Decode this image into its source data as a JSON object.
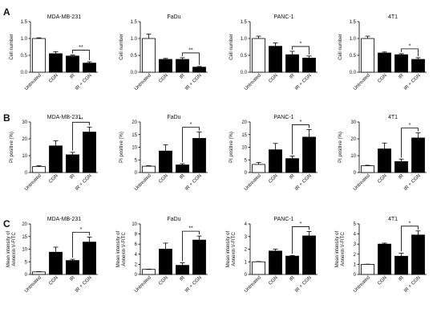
{
  "chart_data": [
    {
      "type": "bar",
      "panel": "A",
      "title": "MDA-MB-231",
      "xlabel": "",
      "ylabel": "Cell number",
      "categories": [
        "Untreated",
        "CGN",
        "IR",
        "IR + CGN"
      ],
      "values": [
        1.0,
        0.55,
        0.48,
        0.27
      ],
      "errors": [
        0.02,
        0.06,
        0.03,
        0.04
      ],
      "fills": [
        "#ffffff",
        "#000000",
        "#000000",
        "#000000"
      ],
      "ylim": [
        0,
        1.5
      ],
      "yticks": [
        "0.0",
        "0.5",
        "1.0",
        "1.5"
      ],
      "sig": {
        "from": 2,
        "to": 3,
        "label": "**"
      }
    },
    {
      "type": "bar",
      "panel": "A",
      "title": "FaDu",
      "xlabel": "",
      "ylabel": "Cell number",
      "categories": [
        "Untreated",
        "CGN",
        "IR",
        "IR + CGN"
      ],
      "values": [
        1.0,
        0.38,
        0.38,
        0.15
      ],
      "errors": [
        0.13,
        0.03,
        0.05,
        0.02
      ],
      "fills": [
        "#ffffff",
        "#000000",
        "#000000",
        "#000000"
      ],
      "ylim": [
        0,
        1.5
      ],
      "yticks": [
        "0.0",
        "0.5",
        "1.0",
        "1.5"
      ],
      "sig": {
        "from": 2,
        "to": 3,
        "label": "**"
      }
    },
    {
      "type": "bar",
      "panel": "A",
      "title": "PANC-1",
      "xlabel": "",
      "ylabel": "Cell number",
      "categories": [
        "Untreated",
        "CGN",
        "IR",
        "IR + CGN"
      ],
      "values": [
        1.0,
        0.77,
        0.52,
        0.42
      ],
      "errors": [
        0.07,
        0.1,
        0.1,
        0.06
      ],
      "fills": [
        "#ffffff",
        "#000000",
        "#000000",
        "#000000"
      ],
      "ylim": [
        0,
        1.5
      ],
      "yticks": [
        "0.0",
        "0.5",
        "1.0",
        "1.5"
      ],
      "sig": {
        "from": 2,
        "to": 3,
        "label": "*"
      }
    },
    {
      "type": "bar",
      "panel": "A",
      "title": "4T1",
      "xlabel": "",
      "ylabel": "Cell number",
      "categories": [
        "Untreated",
        "CGN",
        "IR",
        "IR + CGN"
      ],
      "values": [
        1.0,
        0.57,
        0.52,
        0.38
      ],
      "errors": [
        0.07,
        0.03,
        0.03,
        0.05
      ],
      "fills": [
        "#ffffff",
        "#000000",
        "#000000",
        "#000000"
      ],
      "ylim": [
        0,
        1.5
      ],
      "yticks": [
        "0.0",
        "0.5",
        "1.0",
        "1.5"
      ],
      "sig": {
        "from": 2,
        "to": 3,
        "label": "*"
      }
    },
    {
      "type": "bar",
      "panel": "B",
      "title": "MDA-MB-231",
      "xlabel": "",
      "ylabel": "PI positive (%)",
      "categories": [
        "Untreated",
        "CGN",
        "IR",
        "IR + CGN"
      ],
      "values": [
        3.5,
        15.8,
        10.5,
        24.0
      ],
      "errors": [
        0.5,
        3.0,
        1.5,
        3.0
      ],
      "fills": [
        "#ffffff",
        "#000000",
        "#000000",
        "#000000"
      ],
      "ylim": [
        0,
        30
      ],
      "yticks": [
        "0",
        "10",
        "20",
        "30"
      ],
      "sig": {
        "from": 2,
        "to": 3,
        "label": "**"
      }
    },
    {
      "type": "bar",
      "panel": "B",
      "title": "FaDu",
      "xlabel": "",
      "ylabel": "PI positive (%)",
      "categories": [
        "Untreated",
        "CGN",
        "IR",
        "IR + CGN"
      ],
      "values": [
        2.5,
        8.5,
        3.0,
        13.5
      ],
      "errors": [
        0.2,
        2.5,
        0.5,
        2.5
      ],
      "fills": [
        "#ffffff",
        "#000000",
        "#000000",
        "#000000"
      ],
      "ylim": [
        0,
        20
      ],
      "yticks": [
        "0",
        "5",
        "10",
        "15",
        "20"
      ],
      "sig": {
        "from": 2,
        "to": 3,
        "label": "*"
      }
    },
    {
      "type": "bar",
      "panel": "B",
      "title": "PANC-1",
      "xlabel": "",
      "ylabel": "PI positive (%)",
      "categories": [
        "Untreated",
        "CGN",
        "IR",
        "IR + CGN"
      ],
      "values": [
        3.2,
        9.0,
        5.5,
        14.0
      ],
      "errors": [
        0.8,
        2.5,
        1.0,
        3.0
      ],
      "fills": [
        "#ffffff",
        "#000000",
        "#000000",
        "#000000"
      ],
      "ylim": [
        0,
        20
      ],
      "yticks": [
        "0",
        "5",
        "10",
        "15",
        "20"
      ],
      "sig": {
        "from": 2,
        "to": 3,
        "label": "*"
      }
    },
    {
      "type": "bar",
      "panel": "B",
      "title": "4T1",
      "xlabel": "",
      "ylabel": "PI positive (%)",
      "categories": [
        "Untreated",
        "CGN",
        "IR",
        "IR + CGN"
      ],
      "values": [
        4.0,
        14.0,
        6.5,
        20.5
      ],
      "errors": [
        0.3,
        3.5,
        1.5,
        3.0
      ],
      "fills": [
        "#ffffff",
        "#000000",
        "#000000",
        "#000000"
      ],
      "ylim": [
        0,
        30
      ],
      "yticks": [
        "0",
        "10",
        "20",
        "30"
      ],
      "sig": {
        "from": 2,
        "to": 3,
        "label": "*"
      }
    },
    {
      "type": "bar",
      "panel": "C",
      "title": "MDA-MB-231",
      "xlabel": "",
      "ylabel": "Mean intensity of Annexin V-FITC",
      "categories": [
        "Untreated",
        "CGN",
        "IR",
        "IR + CGN"
      ],
      "values": [
        1.0,
        8.8,
        5.5,
        12.8
      ],
      "errors": [
        0.1,
        2.0,
        0.5,
        2.0
      ],
      "fills": [
        "#ffffff",
        "#000000",
        "#000000",
        "#000000"
      ],
      "ylim": [
        0,
        20
      ],
      "yticks": [
        "0",
        "5",
        "10",
        "15",
        "20"
      ],
      "sig": {
        "from": 2,
        "to": 3,
        "label": "*"
      }
    },
    {
      "type": "bar",
      "panel": "C",
      "title": "FaDu",
      "xlabel": "",
      "ylabel": "Mean intensity of Annexin V-FITC",
      "categories": [
        "Untreated",
        "CGN",
        "IR",
        "IR + CGN"
      ],
      "values": [
        1.0,
        5.0,
        1.8,
        6.8
      ],
      "errors": [
        0.05,
        1.2,
        0.5,
        0.8
      ],
      "fills": [
        "#ffffff",
        "#000000",
        "#000000",
        "#000000"
      ],
      "ylim": [
        0,
        10
      ],
      "yticks": [
        "0",
        "2",
        "4",
        "6",
        "8",
        "10"
      ],
      "sig": {
        "from": 2,
        "to": 3,
        "label": "**"
      }
    },
    {
      "type": "bar",
      "panel": "C",
      "title": "PANC-1",
      "xlabel": "",
      "ylabel": "Mean intensity of Annexin V-FITC",
      "categories": [
        "Untreated",
        "CGN",
        "IR",
        "IR + CGN"
      ],
      "values": [
        1.0,
        1.85,
        1.45,
        3.05
      ],
      "errors": [
        0.02,
        0.15,
        0.05,
        0.35
      ],
      "fills": [
        "#ffffff",
        "#000000",
        "#000000",
        "#000000"
      ],
      "ylim": [
        0,
        4
      ],
      "yticks": [
        "0",
        "1",
        "2",
        "3",
        "4"
      ],
      "sig": {
        "from": 2,
        "to": 3,
        "label": "*"
      }
    },
    {
      "type": "bar",
      "panel": "C",
      "title": "4T1",
      "xlabel": "",
      "ylabel": "Mean intensity of Annexin V-FITC",
      "categories": [
        "Untreated",
        "CGN",
        "IR",
        "IR + CGN"
      ],
      "values": [
        1.0,
        3.0,
        1.8,
        3.9
      ],
      "errors": [
        0.02,
        0.1,
        0.3,
        0.4
      ],
      "fills": [
        "#ffffff",
        "#000000",
        "#000000",
        "#000000"
      ],
      "ylim": [
        0,
        5
      ],
      "yticks": [
        "0",
        "1",
        "2",
        "3",
        "4",
        "5"
      ],
      "sig": {
        "from": 2,
        "to": 3,
        "label": "*"
      }
    }
  ],
  "panels": [
    "A",
    "B",
    "C"
  ]
}
